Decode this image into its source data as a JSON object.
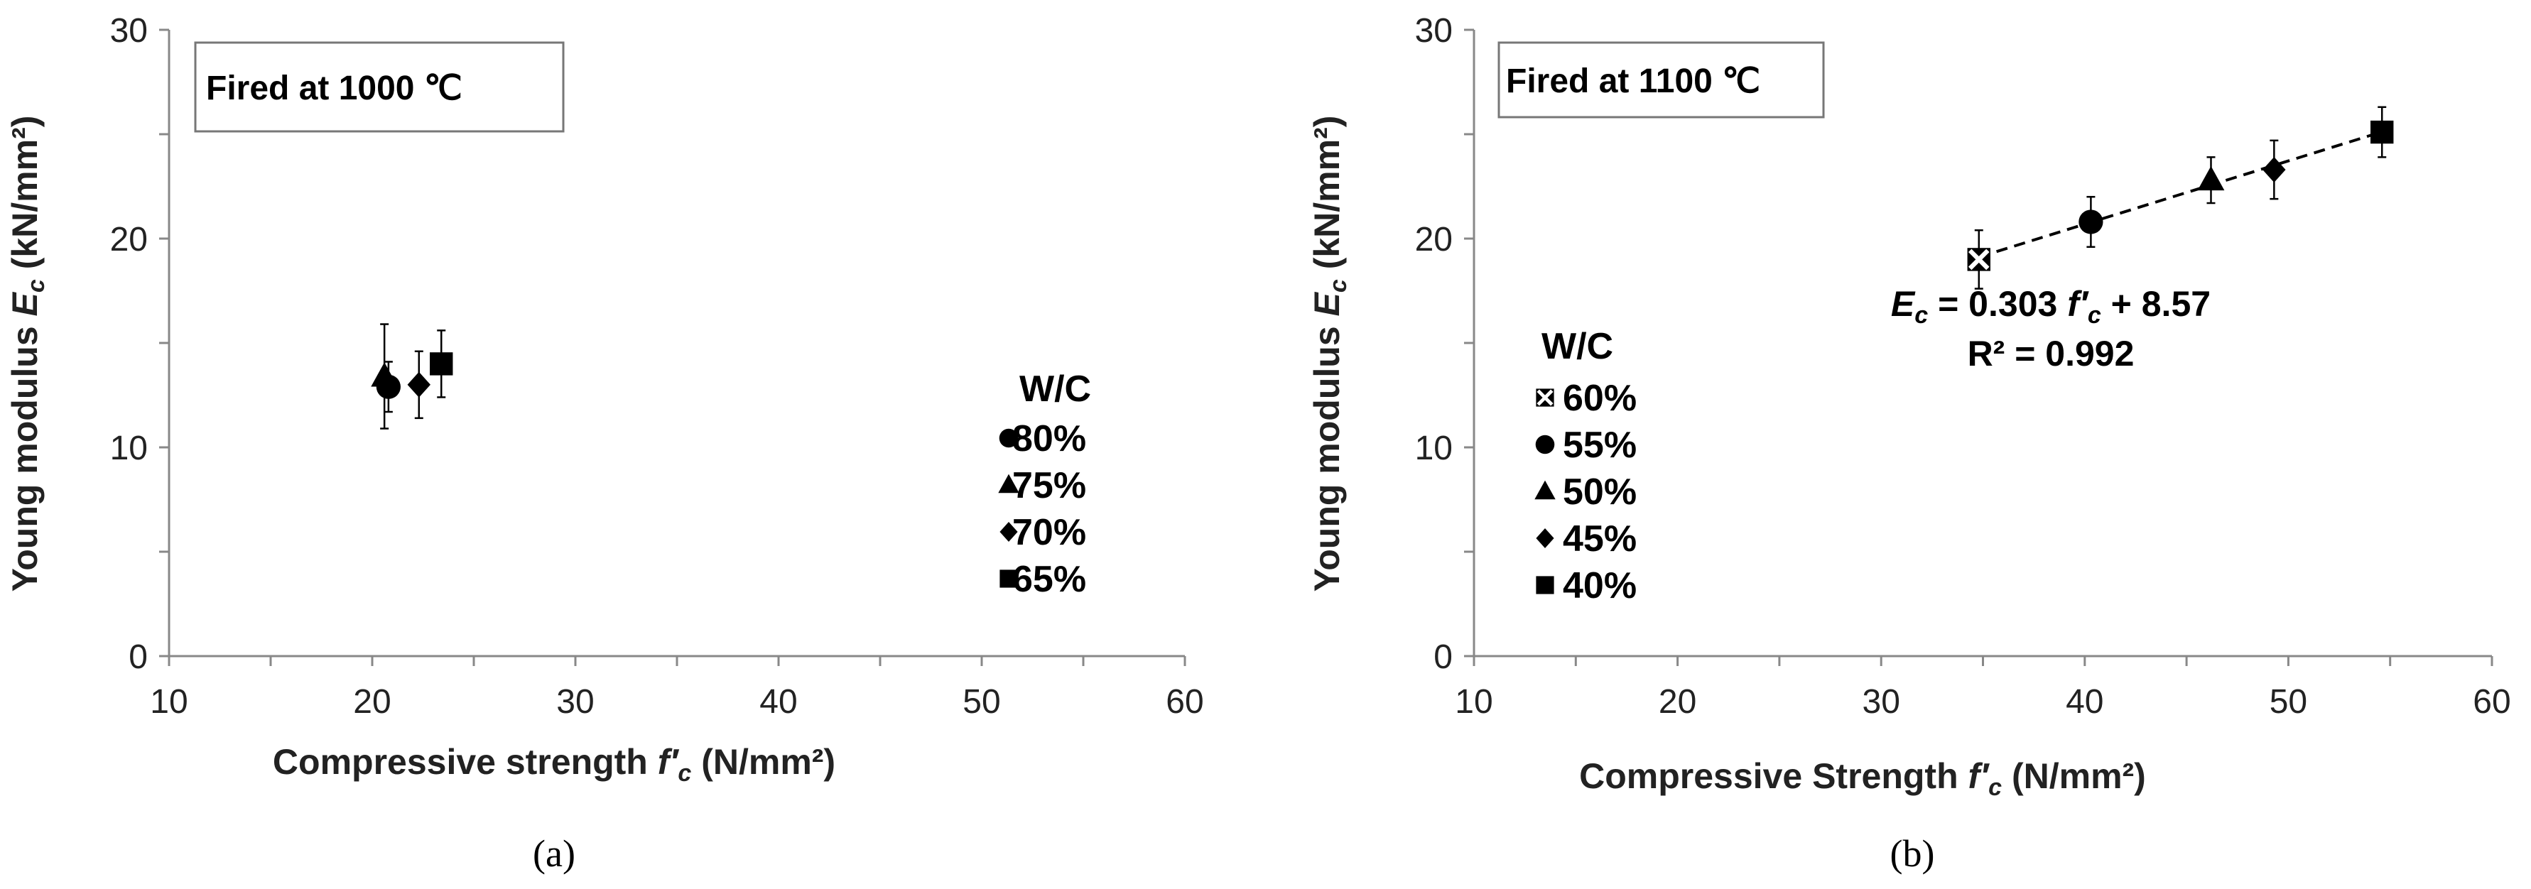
{
  "chart_data": [
    {
      "type": "scatter",
      "panel_label": "(a)",
      "box_label": "Fired at 1000 ℃",
      "xlabel": {
        "pre": "Compressive strength ",
        "sym": "f′",
        "sub": "c",
        "unit": " (N/mm²)"
      },
      "ylabel": {
        "pre": "Young modulus ",
        "sym": "E",
        "sub": "c",
        "unit": " (kN/mm²)"
      },
      "xlim": [
        10,
        60
      ],
      "ylim": [
        0,
        30
      ],
      "xticks": [
        "10",
        "20",
        "30",
        "40",
        "50",
        "60"
      ],
      "yticks": [
        "0",
        "10",
        "20",
        "30"
      ],
      "legend_title": "W/C",
      "legend_position": "right",
      "series": [
        {
          "name": "80%",
          "marker": "circle",
          "x": 20.8,
          "y": 12.9,
          "err": 1.2
        },
        {
          "name": "75%",
          "marker": "triangle",
          "x": 20.6,
          "y": 13.4,
          "err": 2.5
        },
        {
          "name": "70%",
          "marker": "diamond",
          "x": 22.3,
          "y": 13.0,
          "err": 1.6
        },
        {
          "name": "65%",
          "marker": "square",
          "x": 23.4,
          "y": 14.0,
          "err": 1.6
        }
      ]
    },
    {
      "type": "scatter",
      "panel_label": "(b)",
      "box_label": "Fired at 1100 ℃",
      "xlabel": {
        "pre": "Compressive Strength ",
        "sym": "f′",
        "sub": "c",
        "unit": " (N/mm²)"
      },
      "ylabel": {
        "pre": "Young modulus ",
        "sym": "E",
        "sub": "c",
        "unit": " (kN/mm²)"
      },
      "xlim": [
        10,
        60
      ],
      "ylim": [
        0,
        30
      ],
      "xticks": [
        "10",
        "20",
        "30",
        "40",
        "50",
        "60"
      ],
      "yticks": [
        "0",
        "10",
        "20",
        "30"
      ],
      "legend_title": "W/C",
      "legend_position": "left",
      "series": [
        {
          "name": "60%",
          "marker": "crossed-square",
          "x": 34.8,
          "y": 19.0,
          "err": 1.4
        },
        {
          "name": "55%",
          "marker": "circle",
          "x": 40.3,
          "y": 20.8,
          "err": 1.2
        },
        {
          "name": "50%",
          "marker": "triangle",
          "x": 46.2,
          "y": 22.8,
          "err": 1.1
        },
        {
          "name": "45%",
          "marker": "diamond",
          "x": 49.3,
          "y": 23.3,
          "err": 1.4
        },
        {
          "name": "40%",
          "marker": "square",
          "x": 54.6,
          "y": 25.1,
          "err": 1.2
        }
      ],
      "trendline": {
        "slope": 0.303,
        "intercept": 8.57,
        "x_range": [
          34.8,
          54.6
        ],
        "style": "dashed",
        "equation_parts": {
          "sym": "E",
          "sub": "c",
          "mid": " = 0.303 ",
          "fsym": "f′",
          "fsub": "c",
          "end": " + 8.57"
        },
        "r2": "R² = 0.992"
      }
    }
  ]
}
